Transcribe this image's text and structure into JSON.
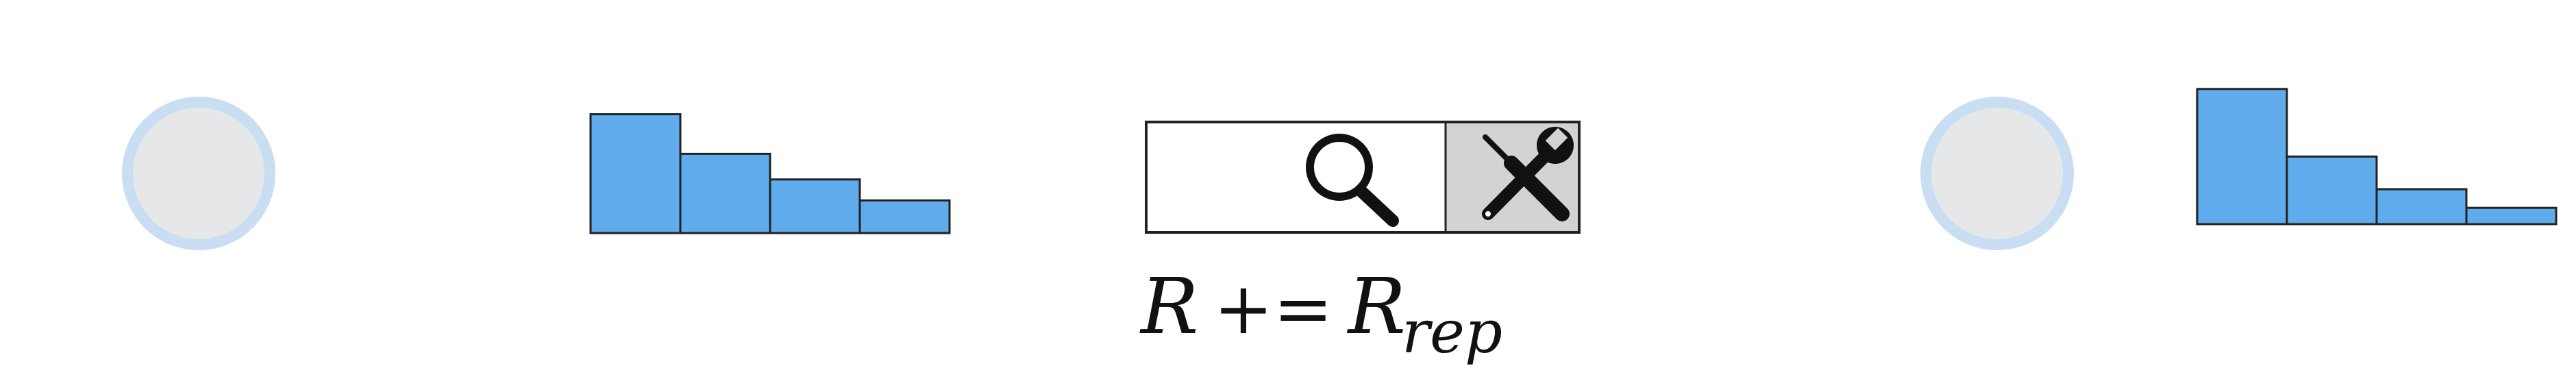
{
  "colors": {
    "agent_fill": "#e6e7e8",
    "agent_ring": "#c9def3",
    "bar_fill": "#5fabeb",
    "bar_stroke": "#222222",
    "tool_panel_bg": "#ffffff",
    "tool_gray_bg": "#d2d3d4"
  },
  "distribution_left": {
    "values": [
      5.1,
      3.4,
      2.3,
      1.4
    ]
  },
  "distribution_right": {
    "values": [
      5.8,
      2.9,
      1.5,
      0.7
    ]
  },
  "tools": {
    "search_icon": "magnifier-icon",
    "settings_icon": "wrench-screwdriver-icon"
  },
  "formula": {
    "lhs": "R",
    "operator": "+=",
    "rhs": "R",
    "rhs_subscript": "rep"
  }
}
